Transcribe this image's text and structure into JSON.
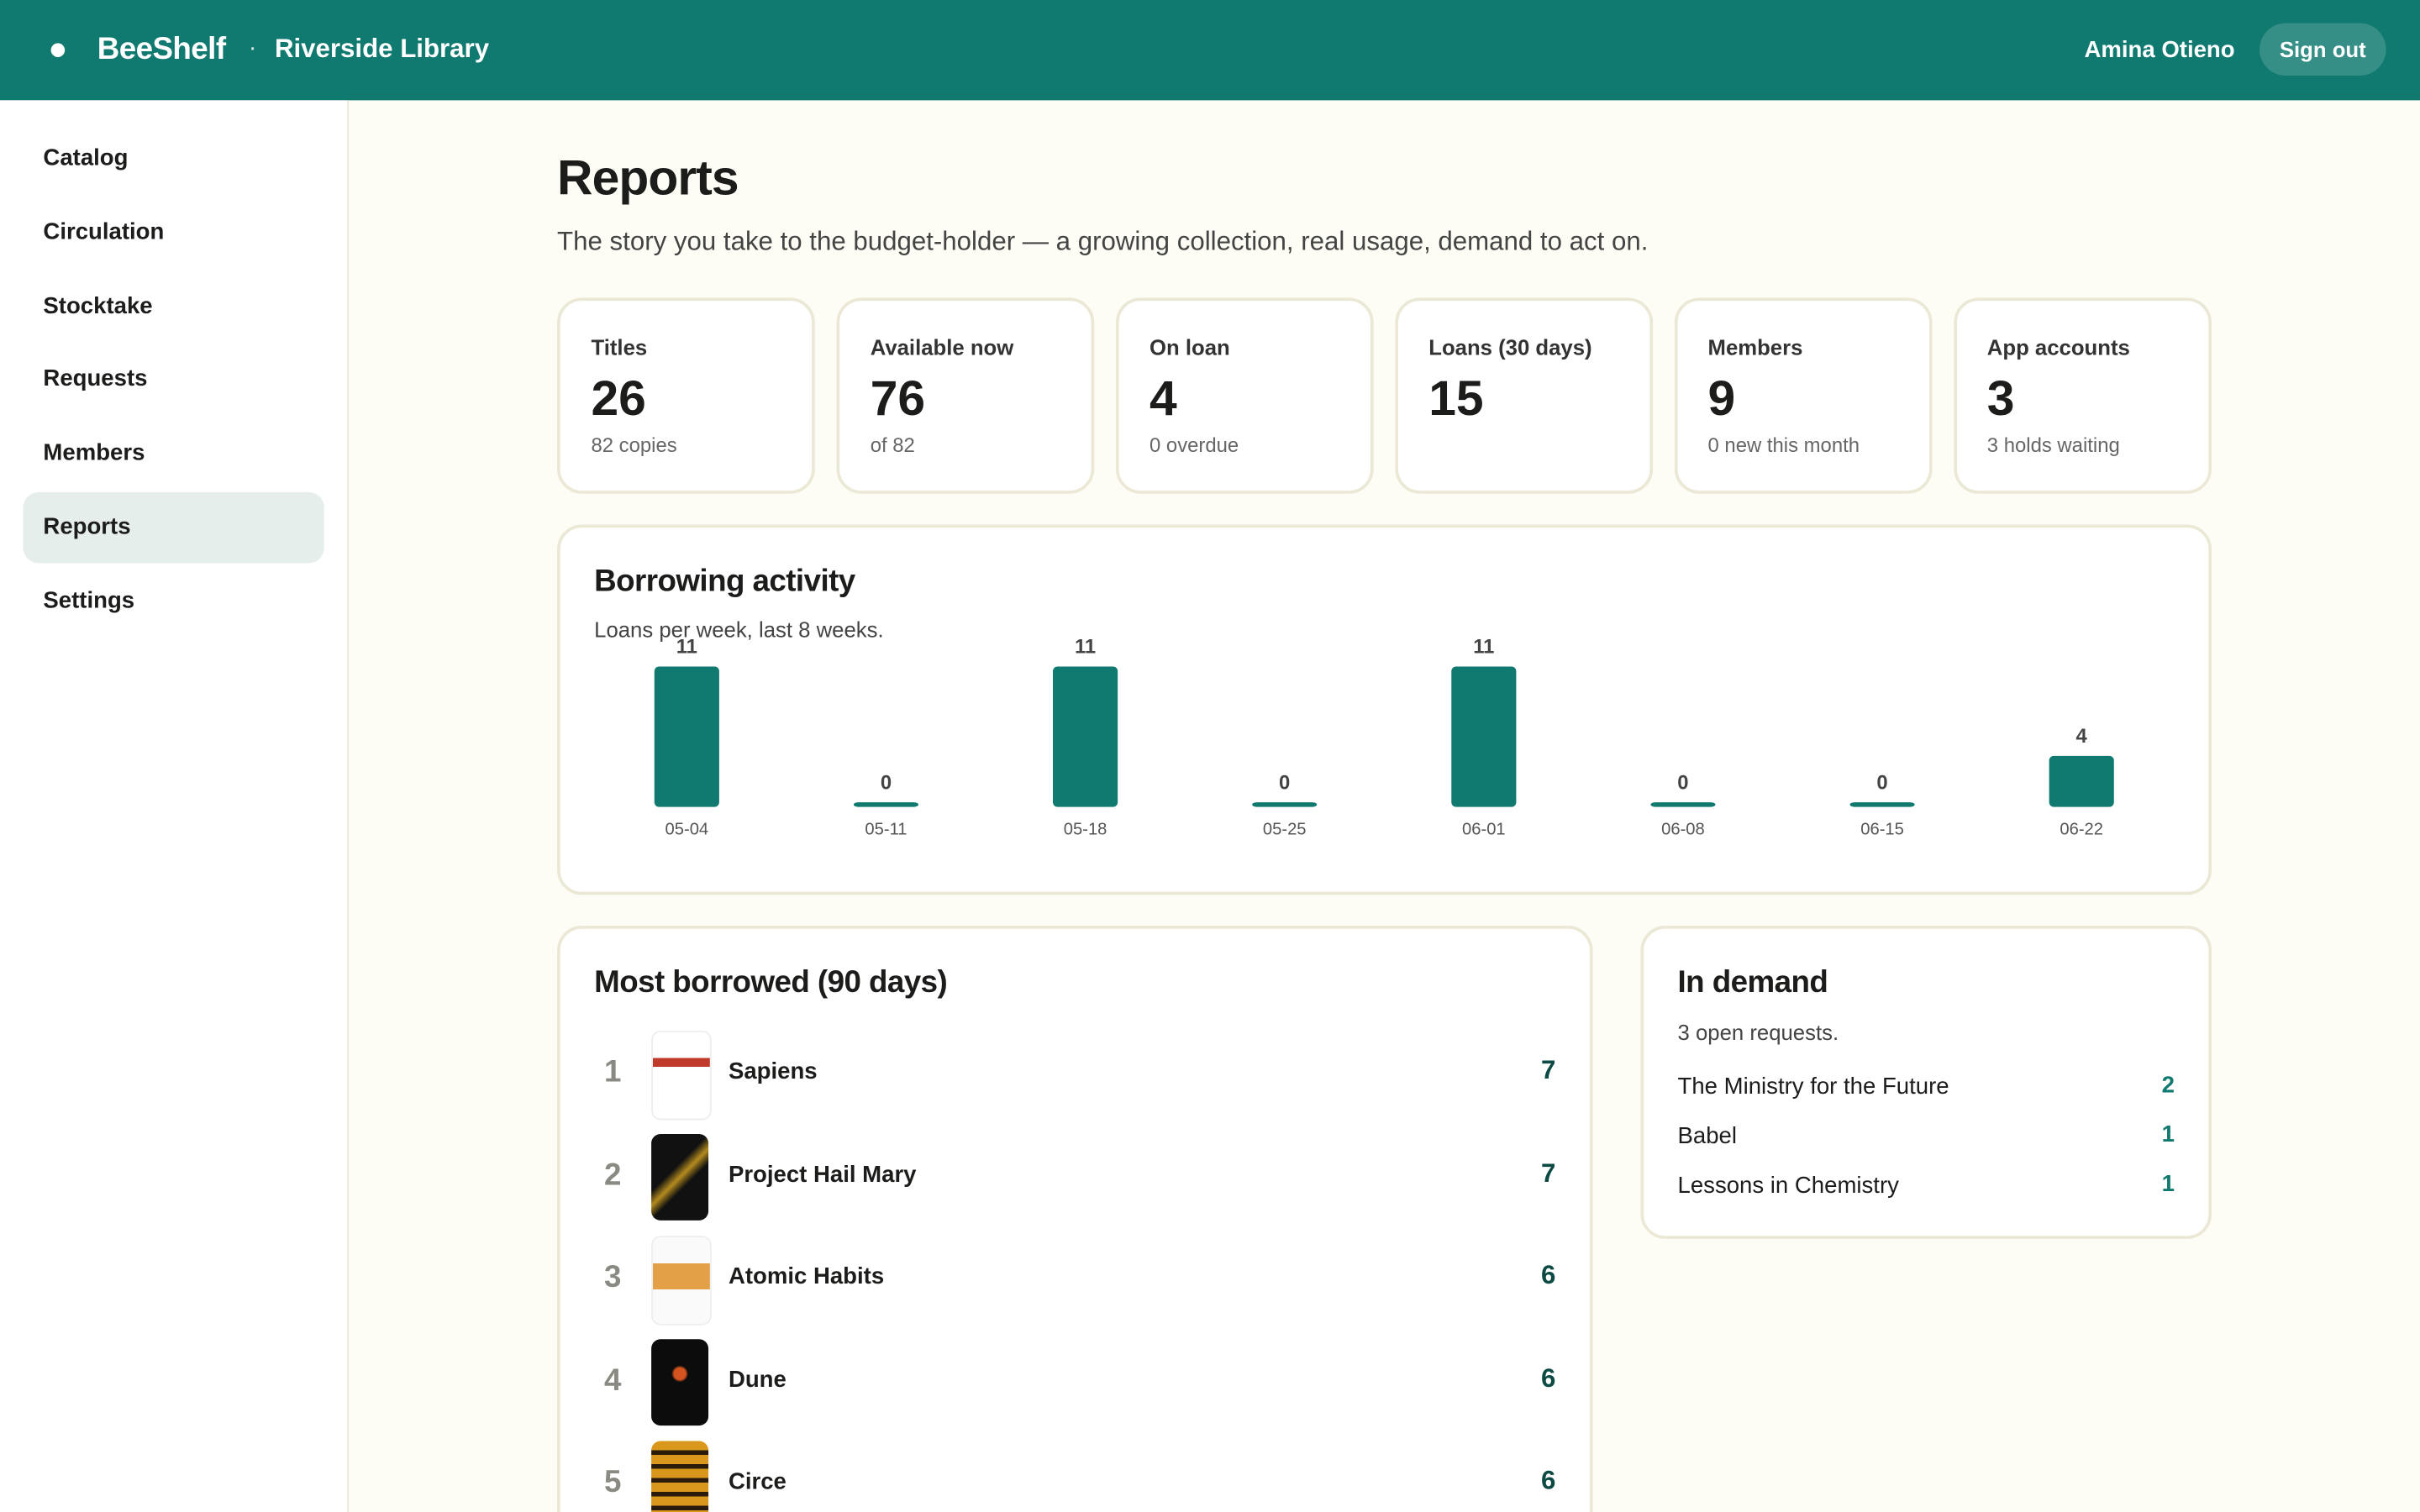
{
  "header": {
    "brand": "BeeShelf",
    "separator": "·",
    "library": "Riverside Library",
    "user": "Amina Otieno",
    "sign_out": "Sign out"
  },
  "nav": {
    "items": [
      "Catalog",
      "Circulation",
      "Stocktake",
      "Requests",
      "Members",
      "Reports",
      "Settings"
    ],
    "active": "Reports"
  },
  "page": {
    "title": "Reports",
    "subtitle": "The story you take to the budget-holder — a growing collection, real usage, demand to act on."
  },
  "stats": [
    {
      "label": "Titles",
      "value": 26,
      "note": "82 copies"
    },
    {
      "label": "Available now",
      "value": 76,
      "note": "of 82"
    },
    {
      "label": "On loan",
      "value": 4,
      "note": "0 overdue"
    },
    {
      "label": "Loans (30 days)",
      "value": 15
    },
    {
      "label": "Members",
      "value": 9,
      "note": "0 new this month"
    },
    {
      "label": "App accounts",
      "value": 3,
      "note": "3 holds waiting"
    }
  ],
  "chart_data": {
    "type": "bar",
    "title": "Borrowing activity",
    "subtitle": "Loans per week, last 8 weeks.",
    "categories": [
      "05-04",
      "05-11",
      "05-18",
      "05-25",
      "06-01",
      "06-08",
      "06-15",
      "06-22"
    ],
    "values": [
      11,
      0,
      11,
      0,
      11,
      0,
      0,
      4
    ],
    "color": "#107a70"
  },
  "most_borrowed": {
    "title": "Most borrowed (90 days)",
    "items": [
      {
        "rank": 1,
        "title": "Sapiens",
        "count": 7
      },
      {
        "rank": 2,
        "title": "Project Hail Mary",
        "count": 7
      },
      {
        "rank": 3,
        "title": "Atomic Habits",
        "count": 6
      },
      {
        "rank": 4,
        "title": "Dune",
        "count": 6
      },
      {
        "rank": 5,
        "title": "Circe",
        "count": 6
      }
    ]
  },
  "in_demand": {
    "title": "In demand",
    "note": "3 open requests.",
    "items": [
      {
        "title": "The Ministry for the Future",
        "count": 2
      },
      {
        "title": "Babel",
        "count": 1
      },
      {
        "title": "Lessons in Chemistry",
        "count": 1
      }
    ]
  }
}
